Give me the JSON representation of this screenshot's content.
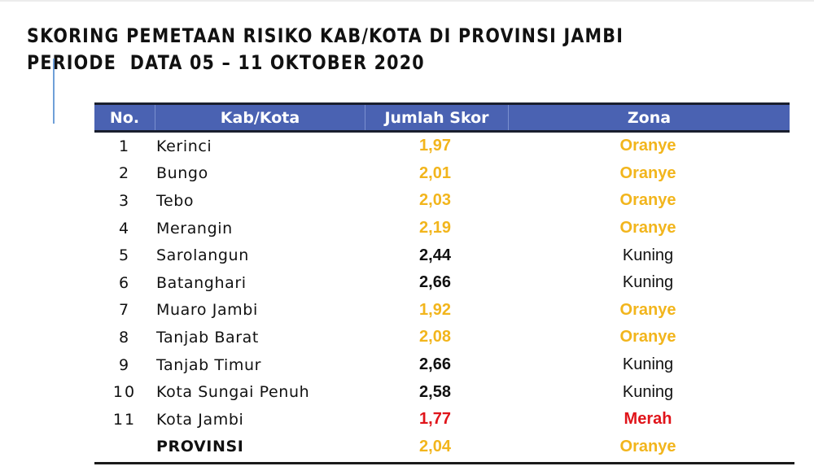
{
  "title": {
    "line1": "SKORING PEMETAAN RISIKO KAB/KOTA DI PROVINSI JAMBI",
    "line2": "PERIODE  DATA 05 – 11 OKTOBER 2020"
  },
  "colors": {
    "header_bg": "#4a62b2",
    "oranye": "#f2b51c",
    "kuning_text": "#111111",
    "merah": "#e0141a"
  },
  "table": {
    "headers": {
      "no": "No.",
      "name": "Kab/Kota",
      "score": "Jumlah Skor",
      "zone": "Zona"
    },
    "rows": [
      {
        "no": "1",
        "name": "Kerinci",
        "score": "1,97",
        "zone": "Oranye",
        "level": "oranye"
      },
      {
        "no": "2",
        "name": "Bungo",
        "score": "2,01",
        "zone": "Oranye",
        "level": "oranye"
      },
      {
        "no": "3",
        "name": "Tebo",
        "score": "2,03",
        "zone": "Oranye",
        "level": "oranye"
      },
      {
        "no": "4",
        "name": "Merangin",
        "score": "2,19",
        "zone": "Oranye",
        "level": "oranye"
      },
      {
        "no": "5",
        "name": "Sarolangun",
        "score": "2,44",
        "zone": "Kuning",
        "level": "kuning"
      },
      {
        "no": "6",
        "name": "Batanghari",
        "score": "2,66",
        "zone": "Kuning",
        "level": "kuning"
      },
      {
        "no": "7",
        "name": "Muaro Jambi",
        "score": "1,92",
        "zone": "Oranye",
        "level": "oranye"
      },
      {
        "no": "8",
        "name": "Tanjab Barat",
        "score": "2,08",
        "zone": "Oranye",
        "level": "oranye"
      },
      {
        "no": "9",
        "name": "Tanjab Timur",
        "score": "2,66",
        "zone": "Kuning",
        "level": "kuning"
      },
      {
        "no": "10",
        "name": "Kota Sungai Penuh",
        "score": "2,58",
        "zone": "Kuning",
        "level": "kuning"
      },
      {
        "no": "11",
        "name": "Kota Jambi",
        "score": "1,77",
        "zone": "Merah",
        "level": "merah"
      }
    ],
    "total": {
      "no": "",
      "name": "PROVINSI",
      "score": "2,04",
      "zone": "Oranye",
      "level": "oranye"
    }
  }
}
